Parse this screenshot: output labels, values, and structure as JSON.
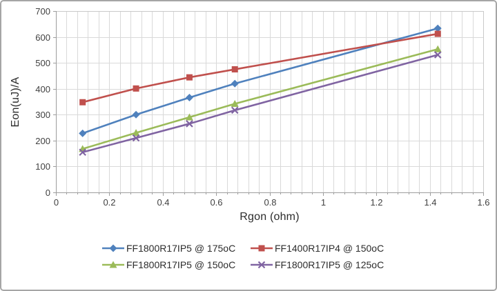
{
  "frame": {
    "background": "#FFFFFF",
    "border_color": "#A6A6A6"
  },
  "chart_data": {
    "type": "line",
    "title": "",
    "xlabel": "Rgon (ohm)",
    "ylabel": "Eon(uJ)/A",
    "x": [
      0.1,
      0.3,
      0.5,
      0.67,
      1.43
    ],
    "series": [
      {
        "name": "FF1800R17IP5 @ 175oC",
        "color": "#4F81BD",
        "marker": "diamond",
        "values": [
          228,
          300,
          366,
          420,
          633
        ]
      },
      {
        "name": "FF1400R17IP4 @ 150oC",
        "color": "#C0504D",
        "marker": "square",
        "values": [
          348,
          401,
          444,
          475,
          612
        ]
      },
      {
        "name": "FF1800R17IP5 @ 150oC",
        "color": "#9BBB59",
        "marker": "triangle",
        "values": [
          168,
          230,
          290,
          342,
          553
        ]
      },
      {
        "name": "FF1800R17IP5 @ 125oC",
        "color": "#8064A2",
        "marker": "x",
        "values": [
          155,
          210,
          265,
          317,
          531
        ]
      }
    ],
    "xlim": [
      0,
      1.6
    ],
    "ylim": [
      0,
      700
    ],
    "x_major_ticks": [
      "0",
      "0.2",
      "0.4",
      "0.6",
      "0.8",
      "1",
      "1.2",
      "1.4",
      "1.6"
    ],
    "x_minor_step": 0.04,
    "y_ticks": [
      "0",
      "100",
      "200",
      "300",
      "400",
      "500",
      "600",
      "700"
    ],
    "grid": {
      "gridline_color": "#D9D9D9",
      "plot_border_color": "#C9C9C9",
      "axis_color": "#9C9C9C",
      "tick_label_color": "#404040"
    },
    "legend_position": "bottom",
    "legend_rows": [
      [
        0,
        1
      ],
      [
        2,
        3
      ]
    ]
  }
}
